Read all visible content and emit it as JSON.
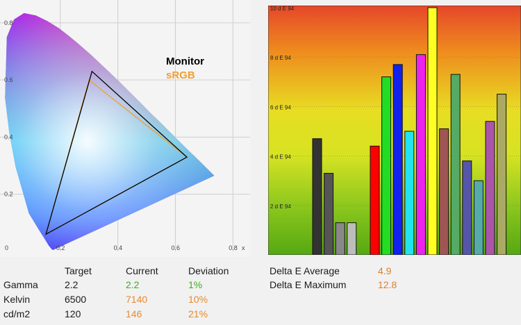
{
  "chart_data": [
    {
      "type": "scatter",
      "title": "",
      "x_ticks": [
        "0",
        "0.2",
        "0.4",
        "0.6",
        "0.8"
      ],
      "y_ticks": [
        "0.2",
        "0.4",
        "0.6",
        "0.8"
      ],
      "x_axis_label": "x",
      "xlim": [
        0,
        0.85
      ],
      "ylim": [
        0,
        0.88
      ],
      "grid": true,
      "legend": [
        {
          "name": "Monitor",
          "color": "#000000"
        },
        {
          "name": "sRGB",
          "color": "#f0a030"
        }
      ],
      "series": [
        {
          "name": "Monitor",
          "points": [
            [
              0.31,
              0.63
            ],
            [
              0.64,
              0.33
            ],
            [
              0.15,
              0.06
            ]
          ]
        },
        {
          "name": "sRGB",
          "points": [
            [
              0.3,
              0.6
            ],
            [
              0.64,
              0.33
            ],
            [
              0.15,
              0.06
            ]
          ]
        }
      ]
    },
    {
      "type": "bar",
      "title": "",
      "ylim": [
        0,
        10
      ],
      "y_ticks": [
        "2 d E 94",
        "4 d E 94",
        "6 d E 94",
        "8 d E 94",
        "10 d E 94"
      ],
      "grid": true,
      "values": [
        4.7,
        3.3,
        1.3,
        1.3,
        0,
        4.4,
        7.2,
        7.7,
        5.0,
        8.1,
        10.0,
        5.1,
        7.3,
        3.8,
        3.0,
        5.4,
        6.5
      ],
      "colors": [
        "#333333",
        "#555555",
        "#888888",
        "#bdbdbd",
        "",
        "#ff0000",
        "#22dd22",
        "#1122ee",
        "#22e4f0",
        "#ee22ee",
        "#ffff22",
        "#a05555",
        "#55aa66",
        "#5555aa",
        "#55aaaa",
        "#aa55aa",
        "#aaaa66"
      ]
    }
  ],
  "table": {
    "headers": [
      "Target",
      "Current",
      "Deviation"
    ],
    "rows": [
      {
        "label": "Gamma",
        "target": "2.2",
        "current": "2.2",
        "deviation": "1%"
      },
      {
        "label": "Kelvin",
        "target": "6500",
        "current": "7140",
        "deviation": "10%"
      },
      {
        "label": "cd/m2",
        "target": "120",
        "current": "146",
        "deviation": "21%"
      }
    ]
  },
  "delta": {
    "avg_label": "Delta E Average",
    "avg_value": "4.9",
    "max_label": "Delta E Maximum",
    "max_value": "12.8"
  },
  "colors": {
    "ok": "#3faa22",
    "warn": "#e88a2a"
  }
}
